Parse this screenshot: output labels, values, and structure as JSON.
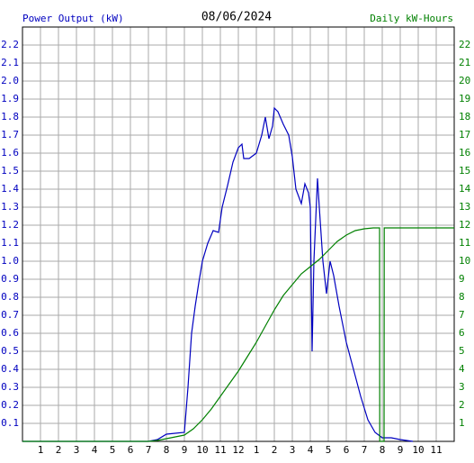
{
  "chart_data": {
    "type": "line",
    "title": "08/06/2024",
    "y_label": "Power Output (kW)",
    "y2_label": "Daily kW-Hours",
    "xlim": [
      0,
      24
    ],
    "xticks": [
      1,
      2,
      3,
      4,
      5,
      6,
      7,
      8,
      9,
      10,
      11,
      12,
      {
        "value": 13,
        "label": "1"
      },
      {
        "value": 14,
        "label": "2"
      },
      {
        "value": 15,
        "label": "3"
      },
      {
        "value": 16,
        "label": "4"
      },
      {
        "value": 17,
        "label": "5"
      },
      {
        "value": 18,
        "label": "6"
      },
      {
        "value": 19,
        "label": "7"
      },
      {
        "value": 20,
        "label": "8"
      },
      {
        "value": 21,
        "label": "9"
      },
      {
        "value": 22,
        "label": "10"
      },
      {
        "value": 23,
        "label": "11"
      }
    ],
    "ylim": [
      0,
      2.3
    ],
    "yticks": [
      0.1,
      0.2,
      0.3,
      0.4,
      0.5,
      0.6,
      0.7,
      0.8,
      0.9,
      {
        "value": 1,
        "label": "1.0"
      },
      1.1,
      1.2,
      1.3,
      1.4,
      1.5,
      1.6,
      1.7,
      1.8,
      1.9,
      {
        "value": 2,
        "label": "2.0"
      },
      2.1,
      2.2
    ],
    "y2lim": [
      0,
      23
    ],
    "y2ticks": [
      1,
      2,
      3,
      4,
      5,
      6,
      7,
      8,
      9,
      10,
      11,
      12,
      13,
      14,
      15,
      16,
      17,
      18,
      19,
      20,
      21,
      22
    ],
    "grid": true,
    "series": [
      {
        "name": "Power Output (kW)",
        "color": "#0000c0",
        "x": [
          0,
          7,
          7.5,
          8,
          9,
          9.2,
          9.4,
          9.6,
          9.8,
          10,
          10.3,
          10.6,
          10.9,
          11.1,
          11.4,
          11.7,
          12,
          12.2,
          12.3,
          12.6,
          13,
          13.3,
          13.5,
          13.7,
          13.9,
          14,
          14.2,
          14.5,
          14.8,
          15,
          15.2,
          15.5,
          15.7,
          15.9,
          16,
          16.1,
          16.2,
          16.4,
          16.5,
          16.7,
          16.9,
          17.1,
          17.3,
          17.6,
          18,
          18.4,
          18.8,
          19.2,
          19.6,
          20,
          20.5,
          21,
          21.7
        ],
        "values": [
          0,
          0,
          0.01,
          0.04,
          0.05,
          0.3,
          0.6,
          0.75,
          0.88,
          1.0,
          1.1,
          1.17,
          1.16,
          1.3,
          1.42,
          1.55,
          1.63,
          1.65,
          1.57,
          1.57,
          1.6,
          1.7,
          1.8,
          1.68,
          1.75,
          1.85,
          1.83,
          1.76,
          1.7,
          1.58,
          1.4,
          1.32,
          1.43,
          1.38,
          1.3,
          0.5,
          1.0,
          1.46,
          1.3,
          1.0,
          0.82,
          1.0,
          0.92,
          0.75,
          0.55,
          0.4,
          0.25,
          0.12,
          0.05,
          0.02,
          0.02,
          0.01,
          0
        ]
      },
      {
        "name": "Daily kW-Hours",
        "color": "#008000",
        "axis": "y2",
        "x": [
          0,
          7,
          7.5,
          8,
          8.5,
          9,
          9.5,
          10,
          10.5,
          11,
          11.5,
          12,
          12.5,
          13,
          13.5,
          14,
          14.5,
          15,
          15.5,
          16,
          16.5,
          17,
          17.5,
          18,
          18.5,
          19,
          19.5,
          19.85,
          19.86,
          20.1,
          20.11,
          24
        ],
        "values": [
          0,
          0,
          0.05,
          0.15,
          0.25,
          0.35,
          0.7,
          1.2,
          1.8,
          2.5,
          3.2,
          3.9,
          4.7,
          5.5,
          6.4,
          7.3,
          8.1,
          8.7,
          9.3,
          9.7,
          10.1,
          10.6,
          11.1,
          11.45,
          11.7,
          11.8,
          11.85,
          11.85,
          0,
          0,
          11.85,
          11.85
        ]
      }
    ]
  }
}
